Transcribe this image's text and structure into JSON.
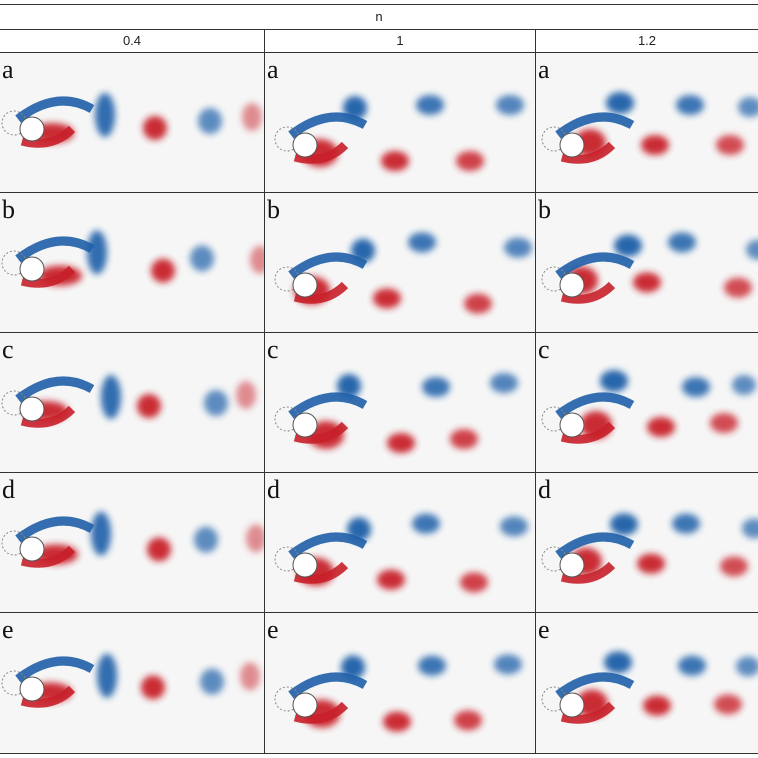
{
  "header": {
    "variable": "n",
    "columns": [
      "0.4",
      "1",
      "1.2"
    ]
  },
  "row_labels": [
    "a",
    "b",
    "c",
    "d",
    "e"
  ],
  "colors": {
    "negative_vortex": "#1f5fa8",
    "positive_vortex": "#c8202a",
    "background": "#f6f6f6"
  }
}
